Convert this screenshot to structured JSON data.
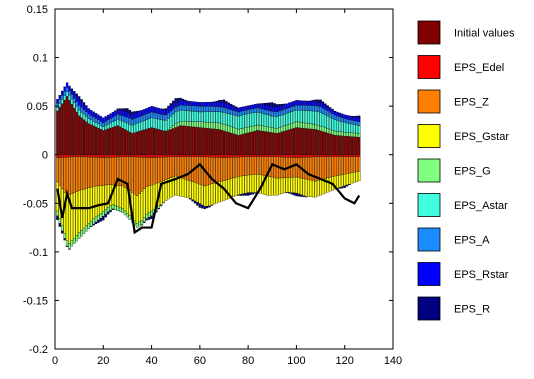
{
  "chart_data": {
    "type": "bar",
    "stacked": true,
    "xlim": [
      0,
      140
    ],
    "ylim": [
      -0.2,
      0.15
    ],
    "xticks": [
      0,
      20,
      40,
      60,
      80,
      100,
      120,
      140
    ],
    "yticks": [
      -0.2,
      -0.15,
      -0.1,
      -0.05,
      0,
      0.05,
      0.1,
      0.15
    ],
    "xtick_labels": [
      "0",
      "20",
      "40",
      "60",
      "80",
      "100",
      "120",
      "140"
    ],
    "ytick_labels": [
      "-0.2",
      "-0.15",
      "-0.1",
      "-0.05",
      "0",
      "0.05",
      "0.1",
      "0.15"
    ],
    "grid": false,
    "legend_position": "right",
    "n_periods": 126,
    "series": [
      {
        "name": "Initial values",
        "color": "#800000",
        "control_x": [
          1,
          5,
          10,
          14,
          20,
          26,
          32,
          36,
          40,
          46,
          52,
          60,
          68,
          76,
          84,
          92,
          100,
          108,
          116,
          126
        ],
        "control_y": [
          0.045,
          0.06,
          0.04,
          0.032,
          0.025,
          0.03,
          0.022,
          0.025,
          0.028,
          0.024,
          0.03,
          0.028,
          0.026,
          0.02,
          0.025,
          0.022,
          0.028,
          0.026,
          0.02,
          0.018
        ]
      },
      {
        "name": "EPS_Edel",
        "color": "#ff0000",
        "control_x": [
          1,
          10,
          20,
          30,
          40,
          50,
          60,
          70,
          80,
          90,
          100,
          110,
          120,
          126
        ],
        "control_y": [
          -0.003,
          -0.002,
          -0.003,
          -0.002,
          -0.003,
          -0.002,
          -0.002,
          -0.003,
          -0.002,
          -0.002,
          -0.003,
          -0.002,
          -0.002,
          -0.002
        ]
      },
      {
        "name": "EPS_Z",
        "color": "#ff8000",
        "control_x": [
          1,
          5,
          10,
          16,
          22,
          28,
          34,
          38,
          44,
          50,
          56,
          62,
          68,
          76,
          84,
          92,
          100,
          108,
          116,
          126
        ],
        "control_y": [
          -0.025,
          -0.04,
          -0.035,
          -0.03,
          -0.028,
          -0.03,
          -0.04,
          -0.03,
          -0.025,
          -0.02,
          -0.025,
          -0.03,
          -0.025,
          -0.02,
          -0.018,
          -0.022,
          -0.02,
          -0.025,
          -0.02,
          -0.015
        ]
      },
      {
        "name": "EPS_Gstar",
        "color": "#ffff00",
        "control_x": [
          1,
          6,
          12,
          18,
          24,
          30,
          36,
          42,
          48,
          56,
          64,
          72,
          80,
          88,
          96,
          104,
          112,
          120,
          126
        ],
        "control_y": [
          -0.03,
          -0.05,
          -0.04,
          -0.03,
          -0.02,
          -0.025,
          -0.03,
          -0.025,
          -0.02,
          -0.018,
          -0.022,
          -0.02,
          -0.018,
          -0.02,
          -0.015,
          -0.018,
          -0.015,
          -0.012,
          -0.01
        ]
      },
      {
        "name": "EPS_G",
        "color": "#80ff80",
        "control_x": [
          1,
          10,
          20,
          30,
          40,
          50,
          60,
          70,
          80,
          90,
          100,
          110,
          120,
          126
        ],
        "control_y": [
          -0.005,
          -0.006,
          -0.005,
          -0.004,
          -0.005,
          0.004,
          0.006,
          0.007,
          0.006,
          0.005,
          0.006,
          0.005,
          0.004,
          0.004
        ]
      },
      {
        "name": "EPS_Astar",
        "color": "#40ffe0",
        "control_x": [
          1,
          10,
          20,
          30,
          40,
          50,
          60,
          70,
          80,
          90,
          100,
          110,
          120,
          126
        ],
        "control_y": [
          0.004,
          0.006,
          0.004,
          0.008,
          0.01,
          0.012,
          0.01,
          0.012,
          0.014,
          0.012,
          0.012,
          0.014,
          0.01,
          0.008
        ]
      },
      {
        "name": "EPS_A",
        "color": "#1a8cff",
        "control_x": [
          1,
          10,
          20,
          30,
          40,
          50,
          60,
          70,
          80,
          90,
          100,
          110,
          120,
          126
        ],
        "control_y": [
          0.004,
          0.005,
          0.004,
          0.006,
          0.006,
          0.005,
          0.006,
          0.005,
          0.004,
          0.005,
          0.005,
          0.006,
          0.004,
          0.004
        ]
      },
      {
        "name": "EPS_Rstar",
        "color": "#0000ff",
        "control_x": [
          1,
          10,
          20,
          30,
          40,
          50,
          60,
          70,
          80,
          90,
          100,
          110,
          120,
          126
        ],
        "control_y": [
          0.004,
          0.006,
          0.005,
          0.005,
          0.006,
          0.005,
          0.004,
          0.005,
          0.004,
          0.005,
          0.005,
          0.004,
          0.004,
          0.004
        ]
      },
      {
        "name": "EPS_R",
        "color": "#000080",
        "control_x": [
          1,
          10,
          20,
          30,
          40,
          50,
          60,
          70,
          80,
          90,
          100,
          110,
          120,
          126
        ],
        "control_y": [
          -0.004,
          0.003,
          -0.004,
          0.004,
          -0.003,
          0.004,
          -0.004,
          0.003,
          -0.003,
          0.004,
          -0.003,
          0.003,
          -0.002,
          0.002
        ]
      }
    ],
    "total_line": {
      "color": "#000000",
      "control_x": [
        1,
        3,
        5,
        7,
        10,
        14,
        18,
        22,
        26,
        30,
        33,
        36,
        40,
        44,
        50,
        55,
        60,
        65,
        70,
        75,
        80,
        85,
        90,
        95,
        100,
        105,
        110,
        115,
        120,
        124,
        126
      ],
      "control_y": [
        -0.035,
        -0.065,
        -0.04,
        -0.055,
        -0.055,
        -0.055,
        -0.052,
        -0.05,
        -0.025,
        -0.03,
        -0.08,
        -0.075,
        -0.075,
        -0.03,
        -0.025,
        -0.02,
        -0.01,
        -0.025,
        -0.035,
        -0.05,
        -0.055,
        -0.035,
        -0.01,
        -0.015,
        -0.01,
        -0.02,
        -0.025,
        -0.03,
        -0.045,
        -0.05,
        -0.042
      ]
    }
  }
}
